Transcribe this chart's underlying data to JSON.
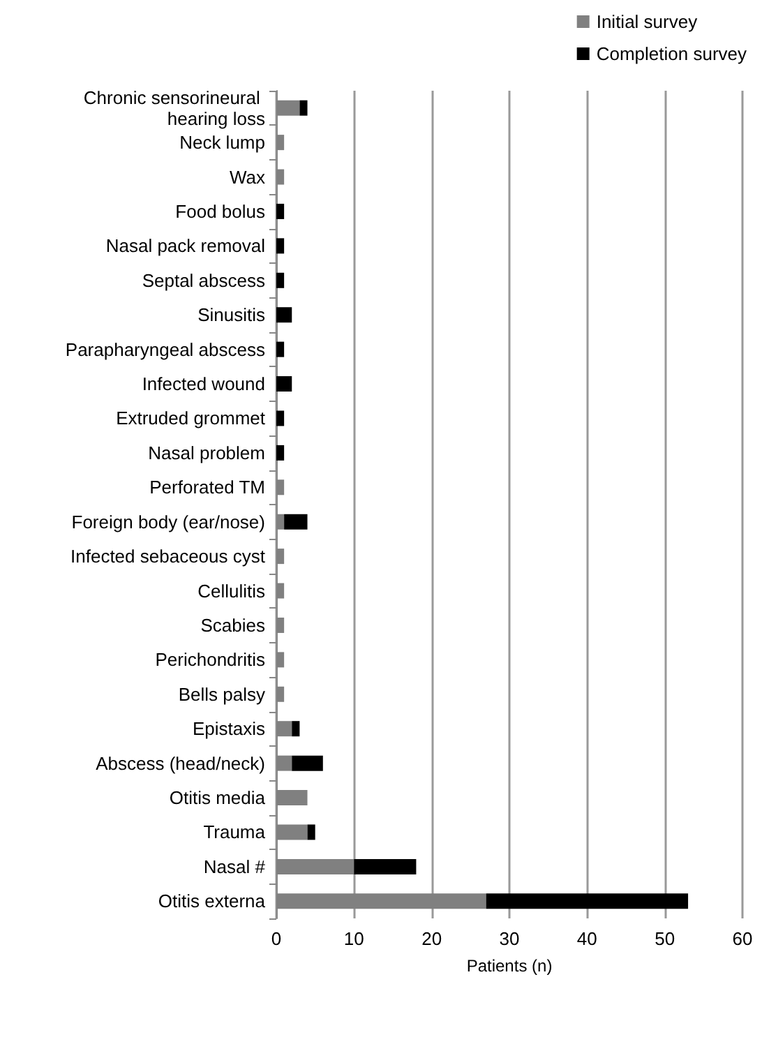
{
  "chart_data": {
    "type": "bar",
    "orientation": "horizontal",
    "stacked": true,
    "xlabel": "Patients (n)",
    "categories": [
      "Chronic sensorineural hearing loss",
      "Neck lump",
      "Wax",
      "Food bolus",
      "Nasal pack removal",
      "Septal abscess",
      "Sinusitis",
      "Parapharyngeal abscess",
      "Infected wound",
      "Extruded grommet",
      "Nasal problem",
      "Perforated TM",
      "Foreign body (ear/nose)",
      "Infected sebaceous cyst",
      "Cellulitis",
      "Scabies",
      "Perichondritis",
      "Bells palsy",
      "Epistaxis",
      "Abscess (head/neck)",
      "Otitis media",
      "Trauma",
      "Nasal #",
      "Otitis externa"
    ],
    "series": [
      {
        "name": "Initial survey",
        "color": "#808080",
        "values": [
          3,
          1,
          1,
          0,
          0,
          0,
          0,
          0,
          0,
          0,
          0,
          1,
          1,
          1,
          1,
          1,
          1,
          1,
          2,
          2,
          4,
          4,
          10,
          27
        ]
      },
      {
        "name": "Completion survey",
        "color": "#000000",
        "values": [
          1,
          0,
          0,
          1,
          1,
          1,
          2,
          1,
          2,
          1,
          1,
          0,
          3,
          0,
          0,
          0,
          0,
          0,
          1,
          4,
          0,
          1,
          8,
          26
        ]
      }
    ],
    "xlim": [
      0,
      60
    ],
    "xticks": [
      0,
      10,
      20,
      30,
      40,
      50,
      60
    ],
    "grid": "x",
    "legend": "top right"
  }
}
